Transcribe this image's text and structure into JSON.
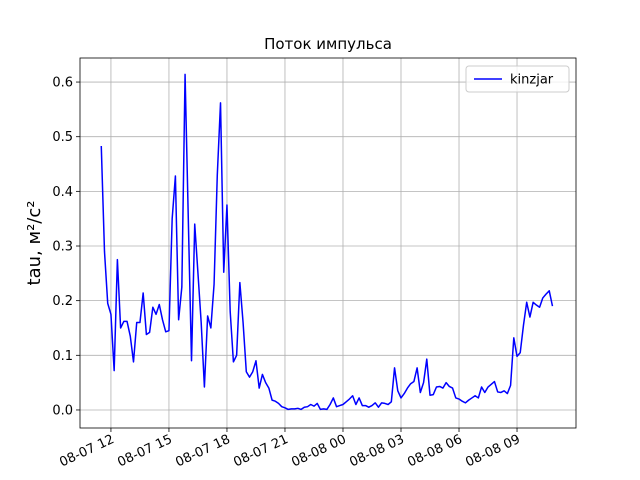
{
  "chart_data": {
    "type": "line",
    "title": "Поток импульса",
    "y_label": "tau, м²/с²",
    "x": [
      "08-07 11:30",
      "08-07 11:40",
      "08-07 11:50",
      "08-07 12:00",
      "08-07 12:10",
      "08-07 12:20",
      "08-07 12:30",
      "08-07 12:40",
      "08-07 12:50",
      "08-07 13:00",
      "08-07 13:10",
      "08-07 13:20",
      "08-07 13:30",
      "08-07 13:40",
      "08-07 13:50",
      "08-07 14:00",
      "08-07 14:10",
      "08-07 14:20",
      "08-07 14:30",
      "08-07 14:40",
      "08-07 14:50",
      "08-07 15:00",
      "08-07 15:10",
      "08-07 15:20",
      "08-07 15:30",
      "08-07 15:40",
      "08-07 15:50",
      "08-07 16:00",
      "08-07 16:10",
      "08-07 16:20",
      "08-07 16:30",
      "08-07 16:40",
      "08-07 16:50",
      "08-07 17:00",
      "08-07 17:10",
      "08-07 17:20",
      "08-07 17:30",
      "08-07 17:40",
      "08-07 17:50",
      "08-07 18:00",
      "08-07 18:10",
      "08-07 18:20",
      "08-07 18:30",
      "08-07 18:40",
      "08-07 18:50",
      "08-07 19:00",
      "08-07 19:10",
      "08-07 19:20",
      "08-07 19:30",
      "08-07 19:40",
      "08-07 19:50",
      "08-07 20:00",
      "08-07 20:10",
      "08-07 20:20",
      "08-07 20:30",
      "08-07 20:40",
      "08-07 20:50",
      "08-07 21:00",
      "08-07 21:10",
      "08-07 21:20",
      "08-07 21:30",
      "08-07 21:40",
      "08-07 21:50",
      "08-07 22:00",
      "08-07 22:10",
      "08-07 22:20",
      "08-07 22:30",
      "08-07 22:40",
      "08-07 22:50",
      "08-07 23:00",
      "08-07 23:10",
      "08-07 23:20",
      "08-07 23:30",
      "08-07 23:40",
      "08-07 23:50",
      "08-08 00:00",
      "08-08 00:10",
      "08-08 00:20",
      "08-08 00:30",
      "08-08 00:40",
      "08-08 00:50",
      "08-08 01:00",
      "08-08 01:10",
      "08-08 01:20",
      "08-08 01:30",
      "08-08 01:40",
      "08-08 01:50",
      "08-08 02:00",
      "08-08 02:10",
      "08-08 02:20",
      "08-08 02:30",
      "08-08 02:40",
      "08-08 02:50",
      "08-08 03:00",
      "08-08 03:10",
      "08-08 03:20",
      "08-08 03:30",
      "08-08 03:40",
      "08-08 03:50",
      "08-08 04:00",
      "08-08 04:10",
      "08-08 04:20",
      "08-08 04:30",
      "08-08 04:40",
      "08-08 04:50",
      "08-08 05:00",
      "08-08 05:10",
      "08-08 05:20",
      "08-08 05:30",
      "08-08 05:40",
      "08-08 05:50",
      "08-08 06:00",
      "08-08 06:10",
      "08-08 06:20",
      "08-08 06:30",
      "08-08 06:40",
      "08-08 06:50",
      "08-08 07:00",
      "08-08 07:10",
      "08-08 07:20",
      "08-08 07:30",
      "08-08 07:40",
      "08-08 07:50",
      "08-08 08:00",
      "08-08 08:10",
      "08-08 08:20",
      "08-08 08:30",
      "08-08 08:40",
      "08-08 08:50",
      "08-08 09:00",
      "08-08 09:10",
      "08-08 09:20",
      "08-08 09:30",
      "08-08 09:40",
      "08-08 09:50",
      "08-08 10:00",
      "08-08 10:10",
      "08-08 10:20",
      "08-08 10:30",
      "08-08 10:40",
      "08-08 10:50"
    ],
    "series": [
      {
        "name": "kinzjar",
        "color": "#0000ff",
        "values": [
          0.483,
          0.29,
          0.195,
          0.175,
          0.072,
          0.275,
          0.15,
          0.162,
          0.162,
          0.135,
          0.088,
          0.16,
          0.16,
          0.214,
          0.138,
          0.142,
          0.188,
          0.175,
          0.193,
          0.165,
          0.143,
          0.145,
          0.35,
          0.428,
          0.165,
          0.225,
          0.614,
          0.35,
          0.09,
          0.34,
          0.25,
          0.16,
          0.042,
          0.172,
          0.15,
          0.23,
          0.43,
          0.562,
          0.252,
          0.375,
          0.18,
          0.088,
          0.1,
          0.233,
          0.16,
          0.07,
          0.06,
          0.07,
          0.09,
          0.04,
          0.065,
          0.05,
          0.04,
          0.018,
          0.016,
          0.012,
          0.006,
          0.004,
          0.001,
          0.002,
          0.002,
          0.003,
          0.001,
          0.005,
          0.006,
          0.01,
          0.007,
          0.012,
          0.001,
          0.002,
          0.001,
          0.01,
          0.022,
          0.006,
          0.008,
          0.01,
          0.015,
          0.02,
          0.026,
          0.01,
          0.022,
          0.008,
          0.008,
          0.005,
          0.008,
          0.013,
          0.005,
          0.013,
          0.012,
          0.01,
          0.015,
          0.077,
          0.035,
          0.022,
          0.03,
          0.04,
          0.048,
          0.052,
          0.077,
          0.032,
          0.05,
          0.093,
          0.027,
          0.028,
          0.042,
          0.043,
          0.04,
          0.05,
          0.043,
          0.04,
          0.022,
          0.02,
          0.016,
          0.013,
          0.018,
          0.022,
          0.026,
          0.022,
          0.042,
          0.032,
          0.042,
          0.047,
          0.052,
          0.033,
          0.032,
          0.035,
          0.03,
          0.045,
          0.132,
          0.098,
          0.105,
          0.155,
          0.197,
          0.17,
          0.197,
          0.192,
          0.188,
          0.205,
          0.212,
          0.218,
          0.19
        ]
      }
    ],
    "xlim": [
      "08-07 10:24",
      "08-08 12:03"
    ],
    "xticks": [
      "08-07 12",
      "08-07 15",
      "08-07 18",
      "08-07 21",
      "08-08 00",
      "08-08 03",
      "08-08 06",
      "08-08 09"
    ],
    "ylim": [
      -0.033,
      0.644
    ],
    "yticks": [
      {
        "value": 0,
        "label": "0.0"
      },
      0.1,
      0.2,
      0.3,
      0.4,
      0.5,
      0.6
    ],
    "grid": true,
    "legend": "upper right"
  }
}
